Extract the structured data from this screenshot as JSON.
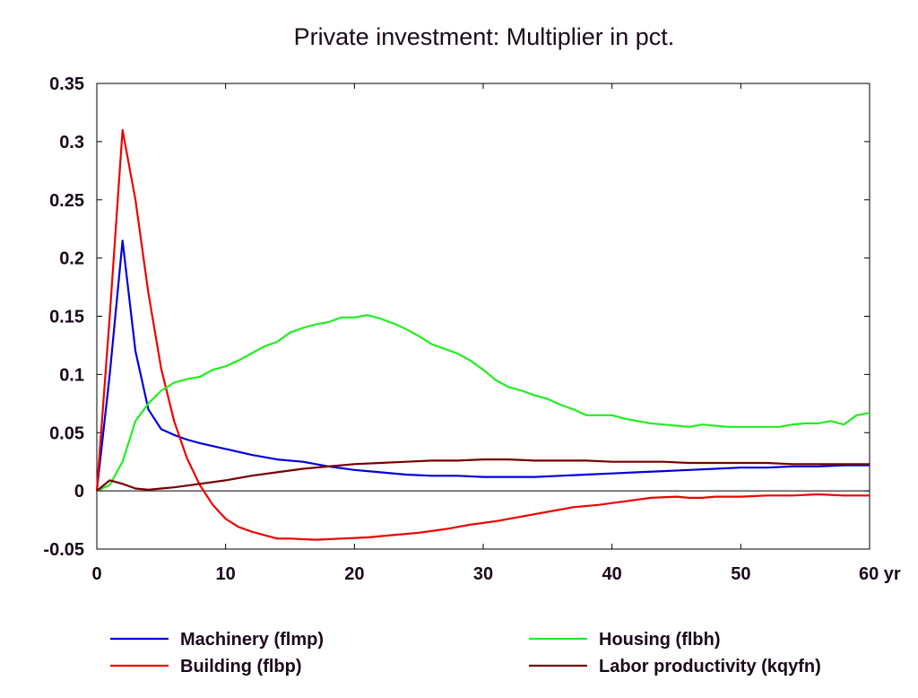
{
  "chart_data": {
    "type": "line",
    "title": "Private investment: Multiplier in pct.",
    "x_unit": "yr",
    "xlim": [
      0,
      60
    ],
    "ylim": [
      -0.05,
      0.35
    ],
    "x_ticks": [
      0,
      10,
      20,
      30,
      40,
      50,
      60
    ],
    "x_tick_labels": [
      "0",
      "10",
      "20",
      "30",
      "40",
      "50",
      "60"
    ],
    "y_ticks": [
      -0.05,
      0,
      0.05,
      0.1,
      0.15,
      0.2,
      0.25,
      0.3,
      0.35
    ],
    "y_tick_labels": [
      "-0.05",
      "0",
      "0.05",
      "0.1",
      "0.15",
      "0.2",
      "0.25",
      "0.3",
      "0.35"
    ],
    "grid": false,
    "zero_line": true,
    "legend_position": "bottom",
    "series": [
      {
        "name": "Machinery (flmp)",
        "color": "#0000dd",
        "x": [
          0,
          1,
          2,
          3,
          4,
          5,
          6,
          7,
          8,
          10,
          12,
          14,
          16,
          18,
          20,
          22,
          24,
          26,
          28,
          30,
          32,
          34,
          36,
          38,
          40,
          42,
          44,
          46,
          48,
          50,
          52,
          54,
          56,
          58,
          60
        ],
        "y": [
          0,
          0.1,
          0.215,
          0.12,
          0.07,
          0.053,
          0.048,
          0.044,
          0.041,
          0.036,
          0.031,
          0.027,
          0.025,
          0.021,
          0.018,
          0.016,
          0.014,
          0.013,
          0.013,
          0.012,
          0.012,
          0.012,
          0.013,
          0.014,
          0.015,
          0.016,
          0.017,
          0.018,
          0.019,
          0.02,
          0.02,
          0.021,
          0.021,
          0.022,
          0.022
        ]
      },
      {
        "name": "Building (flbp)",
        "color": "#ee0000",
        "x": [
          0,
          1,
          2,
          3,
          4,
          5,
          6,
          7,
          8,
          9,
          10,
          11,
          12,
          13,
          14,
          15,
          17,
          19,
          21,
          23,
          25,
          27,
          29,
          31,
          33,
          35,
          37,
          39,
          41,
          43,
          45,
          46,
          47,
          48,
          50,
          52,
          54,
          56,
          58,
          60
        ],
        "y": [
          0,
          0.15,
          0.31,
          0.25,
          0.17,
          0.105,
          0.06,
          0.028,
          0.005,
          -0.012,
          -0.024,
          -0.031,
          -0.035,
          -0.038,
          -0.041,
          -0.041,
          -0.042,
          -0.041,
          -0.04,
          -0.038,
          -0.036,
          -0.033,
          -0.029,
          -0.026,
          -0.022,
          -0.018,
          -0.014,
          -0.012,
          -0.009,
          -0.006,
          -0.005,
          -0.006,
          -0.006,
          -0.005,
          -0.005,
          -0.004,
          -0.004,
          -0.003,
          -0.004,
          -0.004
        ]
      },
      {
        "name": "Housing (flbh)",
        "color": "#22ee22",
        "x": [
          0,
          1,
          2,
          3,
          4,
          5,
          6,
          7,
          8,
          9,
          10,
          11,
          12,
          13,
          14,
          15,
          16,
          17,
          18,
          19,
          20,
          21,
          22,
          23,
          24,
          25,
          26,
          27,
          28,
          29,
          30,
          31,
          32,
          33,
          34,
          35,
          36,
          37,
          38,
          39,
          40,
          41,
          42,
          43,
          44,
          45,
          46,
          47,
          48,
          49,
          50,
          51,
          52,
          53,
          54,
          55,
          56,
          57,
          58,
          59,
          60
        ],
        "y": [
          0,
          0.005,
          0.025,
          0.06,
          0.075,
          0.086,
          0.093,
          0.096,
          0.098,
          0.104,
          0.107,
          0.112,
          0.118,
          0.124,
          0.128,
          0.136,
          0.14,
          0.143,
          0.145,
          0.149,
          0.149,
          0.151,
          0.148,
          0.144,
          0.139,
          0.133,
          0.126,
          0.122,
          0.118,
          0.112,
          0.104,
          0.095,
          0.089,
          0.086,
          0.082,
          0.079,
          0.074,
          0.07,
          0.065,
          0.065,
          0.065,
          0.062,
          0.06,
          0.058,
          0.057,
          0.056,
          0.055,
          0.057,
          0.056,
          0.055,
          0.055,
          0.055,
          0.055,
          0.055,
          0.057,
          0.058,
          0.058,
          0.06,
          0.057,
          0.065,
          0.067
        ]
      },
      {
        "name": "Labor productivity (kqyfn)",
        "color": "#770000",
        "x": [
          0,
          1,
          2,
          3,
          4,
          5,
          6,
          8,
          10,
          12,
          14,
          16,
          18,
          20,
          22,
          24,
          26,
          28,
          30,
          32,
          34,
          36,
          38,
          40,
          42,
          44,
          46,
          48,
          50,
          52,
          54,
          56,
          58,
          60
        ],
        "y": [
          0,
          0.009,
          0.006,
          0.002,
          0.001,
          0.002,
          0.003,
          0.006,
          0.009,
          0.013,
          0.016,
          0.019,
          0.021,
          0.023,
          0.024,
          0.025,
          0.026,
          0.026,
          0.027,
          0.027,
          0.026,
          0.026,
          0.026,
          0.025,
          0.025,
          0.025,
          0.024,
          0.024,
          0.024,
          0.024,
          0.023,
          0.023,
          0.023,
          0.023
        ]
      }
    ]
  }
}
